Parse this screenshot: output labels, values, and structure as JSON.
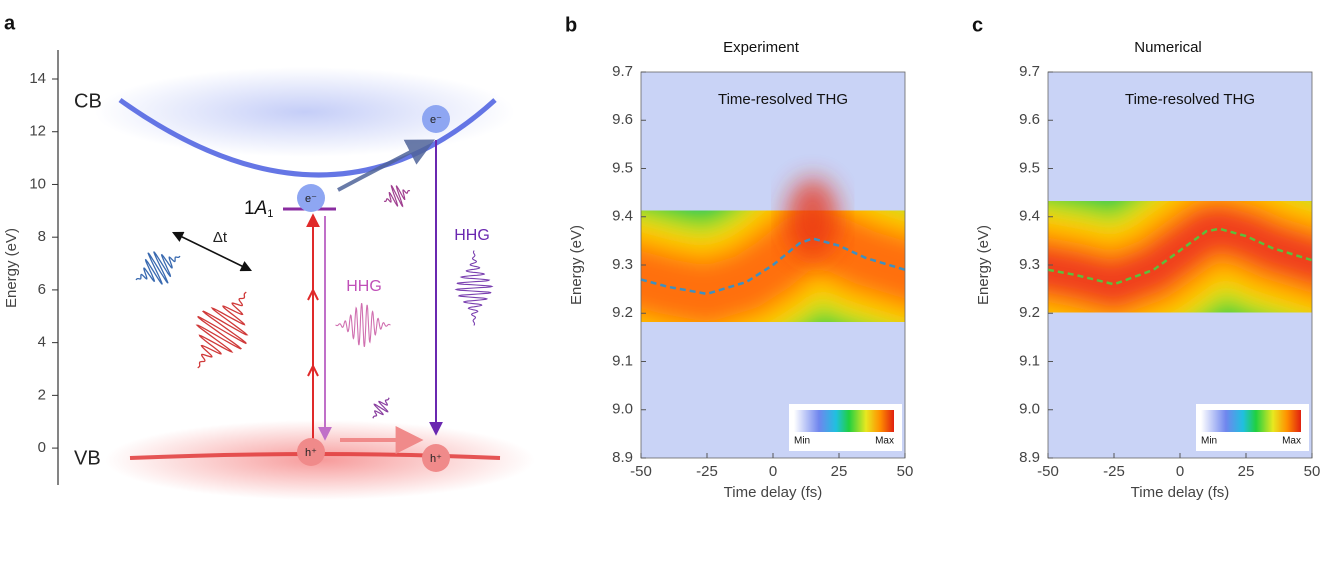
{
  "chart_data": [
    {
      "type": "energy-diagram",
      "panel_label": "a",
      "ylabel": "Energy (eV)",
      "ylim": [
        -1.4,
        15.1
      ],
      "yticks": [
        0,
        2,
        4,
        6,
        8,
        10,
        12,
        14
      ],
      "cb_label": "CB",
      "vb_label": "VB",
      "state": {
        "prefix": "1",
        "letter": "A",
        "sub": "1"
      },
      "electron_labels": [
        "e⁻",
        "e⁻"
      ],
      "hole_labels": [
        "h⁺",
        "h⁺"
      ],
      "delay_label": "Δt",
      "hhg_labels": [
        "HHG",
        "HHG"
      ]
    },
    {
      "type": "heatmap-line",
      "panel_label": "b",
      "title": "Experiment",
      "annotation": "Time-resolved THG",
      "xlabel": "Time delay (fs)",
      "ylabel": "Energy (eV)",
      "xlim": [
        -50,
        50
      ],
      "xticks": [
        -50,
        -25,
        0,
        25,
        50
      ],
      "ylim": [
        8.9,
        9.7
      ],
      "yticks": [
        8.9,
        {
          "value": 9,
          "label": "9.0"
        },
        9.1,
        9.2,
        9.3,
        9.4,
        9.5,
        9.6,
        9.7
      ],
      "line": {
        "x": [
          -50,
          -40,
          -25,
          -10,
          0,
          10,
          15,
          25,
          35,
          50
        ],
        "values": [
          9.27,
          9.255,
          9.24,
          9.265,
          9.3,
          9.345,
          9.355,
          9.34,
          9.315,
          9.29
        ],
        "color": "#3f8fc0"
      },
      "colorbar_labels": [
        "Min",
        "Max"
      ]
    },
    {
      "type": "heatmap-line",
      "panel_label": "c",
      "title": "Numerical",
      "annotation": "Time-resolved THG",
      "xlabel": "Time delay (fs)",
      "ylabel": "Energy (eV)",
      "xlim": [
        -50,
        50
      ],
      "xticks": [
        -50,
        -25,
        0,
        25,
        50
      ],
      "ylim": [
        8.9,
        9.7
      ],
      "yticks": [
        8.9,
        {
          "value": 9,
          "label": "9.0"
        },
        9.1,
        9.2,
        9.3,
        9.4,
        9.5,
        9.6,
        9.7
      ],
      "line": {
        "x": [
          -50,
          -40,
          -25,
          -10,
          0,
          10,
          15,
          25,
          35,
          50
        ],
        "values": [
          9.29,
          9.28,
          9.26,
          9.29,
          9.33,
          9.37,
          9.375,
          9.36,
          9.335,
          9.31
        ],
        "color": "#5cbf3c"
      },
      "colorbar_labels": [
        "Min",
        "Max"
      ]
    }
  ]
}
